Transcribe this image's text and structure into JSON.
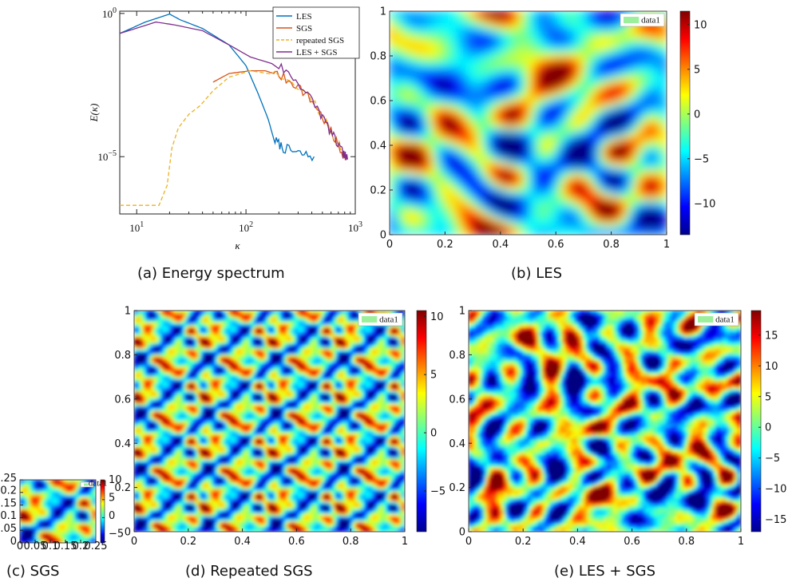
{
  "captions": {
    "a": "(a)  Energy spectrum",
    "b": "(b)  LES",
    "c": "(c)  SGS",
    "d": "(d)  Repeated SGS",
    "e": "(e)  LES + SGS"
  },
  "chart_data": [
    {
      "id": "a",
      "type": "line",
      "xscale": "log",
      "yscale": "log",
      "xlabel": "κ",
      "ylabel": "E(κ)",
      "xlim": [
        7,
        1000
      ],
      "ylim": [
        1e-07,
        1.2
      ],
      "xticks": [
        "10^1",
        "10^2",
        "10^3"
      ],
      "yticks": [
        "10^0",
        "10^-5"
      ],
      "legend_position": "top-right",
      "series": [
        {
          "name": "LES",
          "color": "#0072BD",
          "style": "solid",
          "points": [
            [
              7,
              0.2
            ],
            [
              12,
              0.5
            ],
            [
              20,
              0.95
            ],
            [
              25,
              0.6
            ],
            [
              40,
              0.3
            ],
            [
              70,
              0.08
            ],
            [
              100,
              0.015
            ],
            [
              130,
              0.0015
            ],
            [
              160,
              0.0002
            ],
            [
              180,
              4e-05
            ],
            [
              220,
              2e-05
            ],
            [
              300,
              1.3e-05
            ],
            [
              420,
              1e-05
            ]
          ]
        },
        {
          "name": "SGS",
          "color": "#D95319",
          "style": "solid",
          "points": [
            [
              50,
              0.004
            ],
            [
              70,
              0.008
            ],
            [
              110,
              0.01
            ],
            [
              150,
              0.01
            ],
            [
              200,
              0.007
            ],
            [
              300,
              0.003
            ],
            [
              450,
              0.0005
            ],
            [
              600,
              7e-05
            ],
            [
              750,
              1.5e-05
            ],
            [
              850,
              8e-06
            ]
          ]
        },
        {
          "name": "repeated SGS",
          "color": "#EDB120",
          "style": "dashed",
          "points": [
            [
              7,
              2e-07
            ],
            [
              16,
              2e-07
            ],
            [
              19,
              1e-06
            ],
            [
              21,
              2e-05
            ],
            [
              24,
              0.0001
            ],
            [
              30,
              0.0003
            ],
            [
              38,
              0.0006
            ],
            [
              50,
              0.002
            ],
            [
              70,
              0.006
            ],
            [
              110,
              0.01
            ],
            [
              200,
              0.007
            ],
            [
              400,
              0.001
            ],
            [
              700,
              3e-05
            ],
            [
              800,
              1e-05
            ]
          ]
        },
        {
          "name": "LES + SGS",
          "color": "#7E2F8E",
          "style": "solid",
          "points": [
            [
              7,
              0.2
            ],
            [
              15,
              0.5
            ],
            [
              22,
              0.4
            ],
            [
              40,
              0.25
            ],
            [
              70,
              0.08
            ],
            [
              110,
              0.03
            ],
            [
              200,
              0.015
            ],
            [
              300,
              0.004
            ],
            [
              450,
              0.0005
            ],
            [
              600,
              7e-05
            ],
            [
              750,
              1.5e-05
            ],
            [
              850,
              8e-06
            ]
          ]
        }
      ]
    },
    {
      "id": "b",
      "type": "heatmap",
      "colormap": "jet",
      "legend": "data1",
      "xlim": [
        0,
        1
      ],
      "ylim": [
        0,
        1
      ],
      "xticks": [
        "0",
        "0.2",
        "0.4",
        "0.6",
        "0.8",
        "1"
      ],
      "yticks": [
        "0",
        "0.2",
        "0.4",
        "0.6",
        "0.8",
        "1"
      ],
      "colorbar_ticks": [
        "10",
        "5",
        "0",
        "-5",
        "-10"
      ],
      "clim": [
        -13.5,
        11.5
      ]
    },
    {
      "id": "c",
      "type": "heatmap",
      "colormap": "jet",
      "legend": "data1",
      "xlim": [
        0,
        0.25
      ],
      "ylim": [
        0,
        0.25
      ],
      "xticks": [
        "0",
        "0.05",
        "0.1",
        "0.15",
        "0.2",
        "0.25"
      ],
      "yticks": [
        "0",
        "0.05",
        "0.1",
        "0.15",
        "0.2",
        "0.25"
      ],
      "colorbar_ticks": [
        "10",
        "5",
        "0",
        "-5"
      ],
      "clim": [
        -7,
        10.5
      ]
    },
    {
      "id": "d",
      "type": "heatmap",
      "colormap": "jet",
      "legend": "data1",
      "xlim": [
        0,
        1
      ],
      "ylim": [
        0,
        1
      ],
      "xticks": [
        "0",
        "0.2",
        "0.4",
        "0.6",
        "0.8",
        "1"
      ],
      "yticks": [
        "0",
        "0.2",
        "0.4",
        "0.6",
        "0.8",
        "1"
      ],
      "colorbar_ticks": [
        "10",
        "5",
        "0",
        "-5"
      ],
      "clim": [
        -8.5,
        10.5
      ]
    },
    {
      "id": "e",
      "type": "heatmap",
      "colormap": "jet",
      "legend": "data1",
      "xlim": [
        0,
        1
      ],
      "ylim": [
        0,
        1
      ],
      "xticks": [
        "0",
        "0.2",
        "0.4",
        "0.6",
        "0.8",
        "1"
      ],
      "yticks": [
        "0",
        "0.2",
        "0.4",
        "0.6",
        "0.8",
        "1"
      ],
      "colorbar_ticks": [
        "15",
        "10",
        "5",
        "0",
        "-5",
        "-10",
        "-15"
      ],
      "clim": [
        -17,
        19
      ]
    }
  ]
}
